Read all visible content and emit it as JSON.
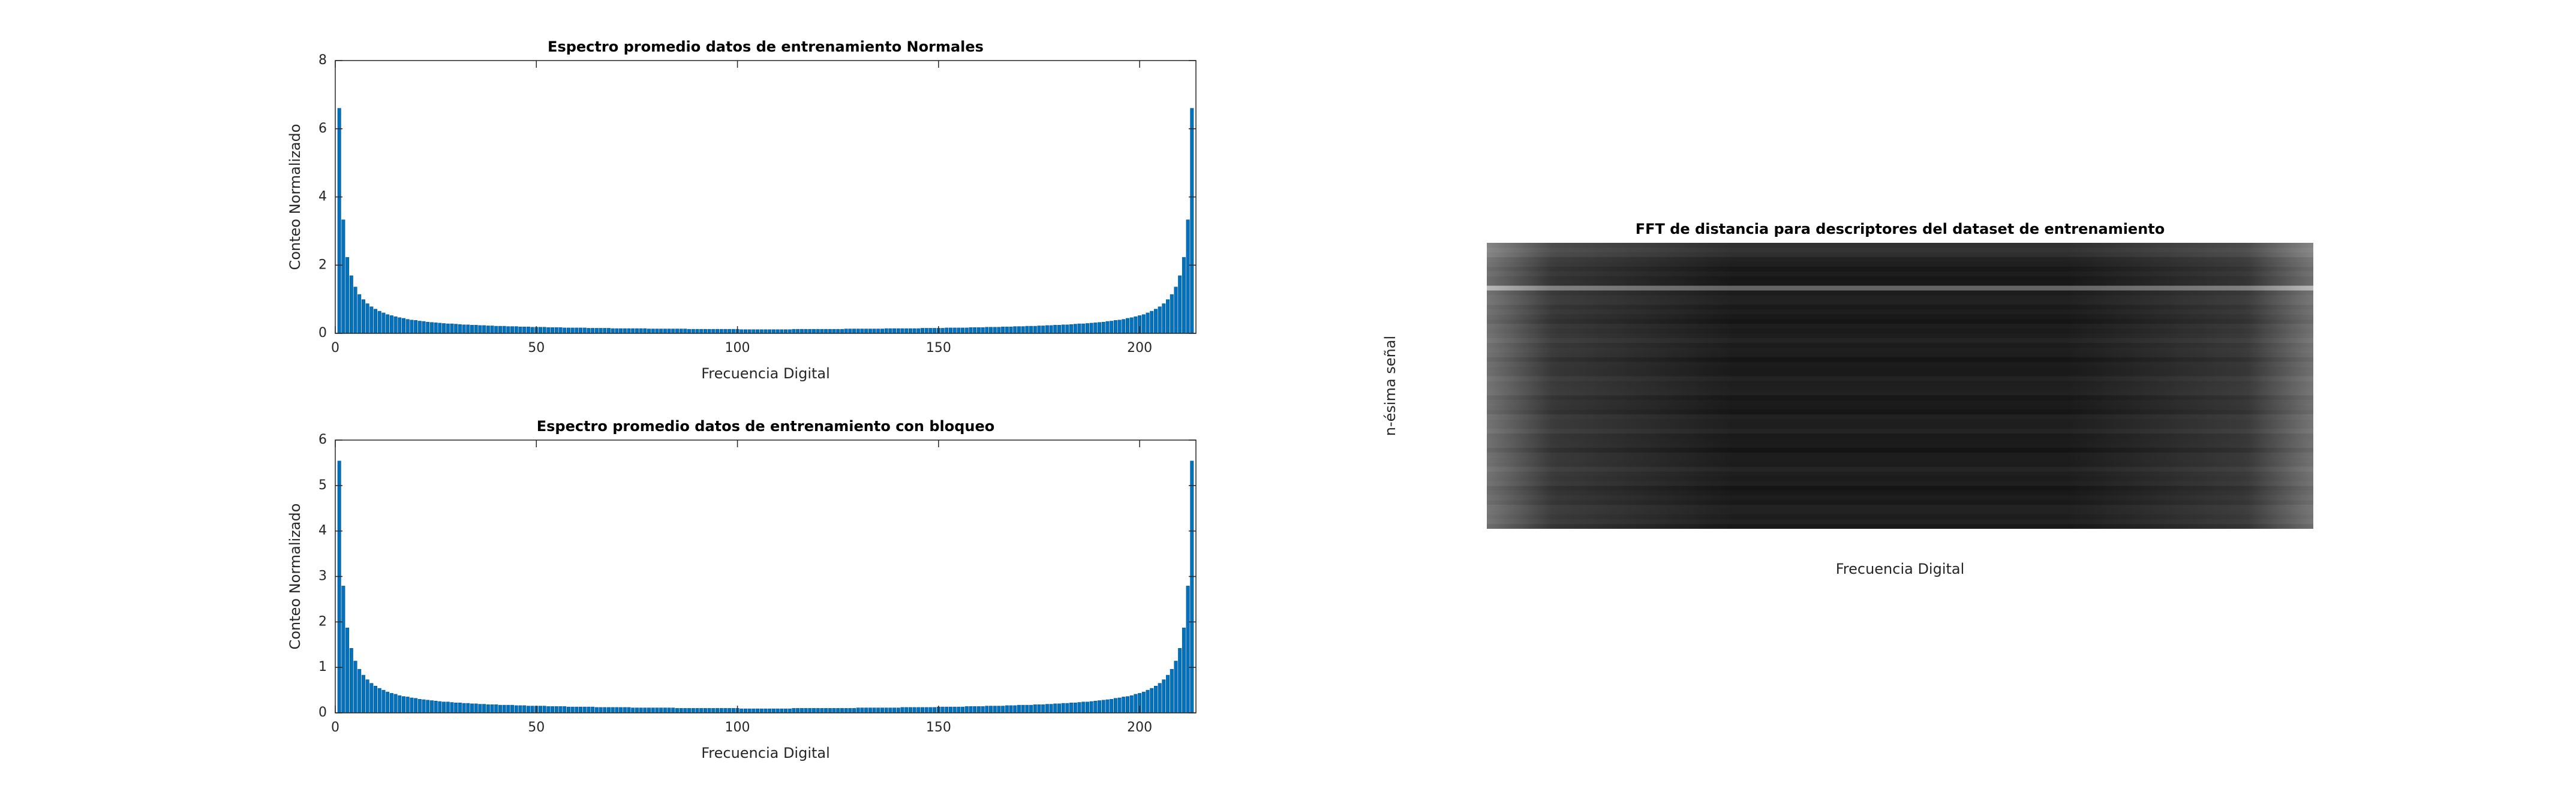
{
  "chart_data": [
    {
      "type": "bar",
      "title": "Espectro promedio datos de entrenamiento Normales",
      "xlabel": "Frecuencia Digital",
      "ylabel": "Conteo Normalizado",
      "color": "#0072bd",
      "xlim": [
        0,
        214
      ],
      "xticks": [
        0,
        50,
        100,
        150,
        200
      ],
      "ylim": [
        0,
        8
      ],
      "yticks": [
        0,
        2,
        4,
        6,
        8
      ],
      "x": [
        0,
        1,
        2,
        3,
        4,
        5,
        6,
        7,
        8,
        9,
        10,
        11,
        12,
        13,
        14,
        15,
        16,
        17,
        18,
        19,
        20,
        21,
        22,
        23,
        24,
        25,
        26,
        27,
        28,
        29,
        30,
        31,
        32,
        33,
        34,
        35,
        36,
        37,
        38,
        39,
        40,
        41,
        42,
        43,
        44,
        45,
        46,
        47,
        48,
        49,
        50,
        51,
        52,
        53,
        54,
        55,
        56,
        57,
        58,
        59,
        60,
        61,
        62,
        63,
        64,
        65,
        66,
        67,
        68,
        69,
        70,
        71,
        72,
        73,
        74,
        75,
        76,
        77,
        78,
        79,
        80,
        81,
        82,
        83,
        84,
        85,
        86,
        87,
        88,
        89,
        90,
        91,
        92,
        93,
        94,
        95,
        96,
        97,
        98,
        99,
        100,
        101,
        102,
        103,
        104,
        105,
        106,
        107,
        108,
        109,
        110,
        111,
        112,
        113,
        114,
        115,
        116,
        117,
        118,
        119,
        120,
        121,
        122,
        123,
        124,
        125,
        126,
        127,
        128,
        129,
        130,
        131,
        132,
        133,
        134,
        135,
        136,
        137,
        138,
        139,
        140,
        141,
        142,
        143,
        144,
        145,
        146,
        147,
        148,
        149,
        150,
        151,
        152,
        153,
        154,
        155,
        156,
        157,
        158,
        159,
        160,
        161,
        162,
        163,
        164,
        165,
        166,
        167,
        168,
        169,
        170,
        171,
        172,
        173,
        174,
        175,
        176,
        177,
        178,
        179,
        180,
        181,
        182,
        183,
        184,
        185,
        186,
        187,
        188,
        189,
        190,
        191,
        192,
        193,
        194,
        195,
        196,
        197,
        198,
        199,
        200,
        201,
        202,
        203,
        204,
        205,
        206,
        207,
        208,
        209,
        210,
        211,
        212,
        213
      ],
      "values": [
        0,
        6.6,
        3.33,
        2.23,
        1.69,
        1.36,
        1.14,
        0.99,
        0.87,
        0.78,
        0.71,
        0.65,
        0.6,
        0.55,
        0.52,
        0.49,
        0.46,
        0.44,
        0.41,
        0.39,
        0.38,
        0.36,
        0.35,
        0.33,
        0.32,
        0.31,
        0.3,
        0.29,
        0.28,
        0.28,
        0.27,
        0.26,
        0.25,
        0.25,
        0.24,
        0.24,
        0.23,
        0.23,
        0.22,
        0.22,
        0.21,
        0.21,
        0.21,
        0.2,
        0.2,
        0.2,
        0.19,
        0.19,
        0.19,
        0.18,
        0.18,
        0.18,
        0.18,
        0.17,
        0.17,
        0.17,
        0.17,
        0.16,
        0.16,
        0.16,
        0.16,
        0.16,
        0.16,
        0.15,
        0.15,
        0.15,
        0.15,
        0.15,
        0.15,
        0.14,
        0.14,
        0.14,
        0.14,
        0.14,
        0.14,
        0.14,
        0.14,
        0.14,
        0.13,
        0.13,
        0.13,
        0.13,
        0.13,
        0.13,
        0.13,
        0.13,
        0.13,
        0.13,
        0.12,
        0.12,
        0.12,
        0.12,
        0.12,
        0.12,
        0.12,
        0.12,
        0.12,
        0.12,
        0.12,
        0.12,
        0.12,
        0.11,
        0.11,
        0.11,
        0.11,
        0.11,
        0.11,
        0.11,
        0.11,
        0.11,
        0.11,
        0.11,
        0.11,
        0.11,
        0.12,
        0.12,
        0.12,
        0.12,
        0.12,
        0.12,
        0.12,
        0.12,
        0.12,
        0.12,
        0.12,
        0.12,
        0.12,
        0.13,
        0.13,
        0.13,
        0.13,
        0.13,
        0.13,
        0.13,
        0.13,
        0.13,
        0.13,
        0.14,
        0.14,
        0.14,
        0.14,
        0.14,
        0.14,
        0.14,
        0.14,
        0.14,
        0.15,
        0.15,
        0.15,
        0.15,
        0.15,
        0.15,
        0.16,
        0.16,
        0.16,
        0.16,
        0.16,
        0.16,
        0.17,
        0.17,
        0.17,
        0.17,
        0.18,
        0.18,
        0.18,
        0.18,
        0.19,
        0.19,
        0.19,
        0.2,
        0.2,
        0.2,
        0.21,
        0.21,
        0.21,
        0.22,
        0.22,
        0.23,
        0.23,
        0.24,
        0.24,
        0.25,
        0.25,
        0.26,
        0.27,
        0.28,
        0.28,
        0.29,
        0.3,
        0.31,
        0.32,
        0.33,
        0.35,
        0.36,
        0.38,
        0.39,
        0.41,
        0.44,
        0.46,
        0.49,
        0.52,
        0.55,
        0.6,
        0.65,
        0.71,
        0.78,
        0.87,
        0.99,
        1.14,
        1.36,
        1.69,
        2.23,
        3.33,
        6.6
      ]
    },
    {
      "type": "bar",
      "title": "Espectro promedio datos de entrenamiento con bloqueo",
      "xlabel": "Frecuencia Digital",
      "ylabel": "Conteo Normalizado",
      "color": "#0072bd",
      "xlim": [
        0,
        214
      ],
      "xticks": [
        0,
        50,
        100,
        150,
        200
      ],
      "ylim": [
        0,
        6
      ],
      "yticks": [
        0,
        1,
        2,
        3,
        4,
        5,
        6
      ],
      "x": [
        0,
        1,
        2,
        3,
        4,
        5,
        6,
        7,
        8,
        9,
        10,
        11,
        12,
        13,
        14,
        15,
        16,
        17,
        18,
        19,
        20,
        21,
        22,
        23,
        24,
        25,
        26,
        27,
        28,
        29,
        30,
        31,
        32,
        33,
        34,
        35,
        36,
        37,
        38,
        39,
        40,
        41,
        42,
        43,
        44,
        45,
        46,
        47,
        48,
        49,
        50,
        51,
        52,
        53,
        54,
        55,
        56,
        57,
        58,
        59,
        60,
        61,
        62,
        63,
        64,
        65,
        66,
        67,
        68,
        69,
        70,
        71,
        72,
        73,
        74,
        75,
        76,
        77,
        78,
        79,
        80,
        81,
        82,
        83,
        84,
        85,
        86,
        87,
        88,
        89,
        90,
        91,
        92,
        93,
        94,
        95,
        96,
        97,
        98,
        99,
        100,
        101,
        102,
        103,
        104,
        105,
        106,
        107,
        108,
        109,
        110,
        111,
        112,
        113,
        114,
        115,
        116,
        117,
        118,
        119,
        120,
        121,
        122,
        123,
        124,
        125,
        126,
        127,
        128,
        129,
        130,
        131,
        132,
        133,
        134,
        135,
        136,
        137,
        138,
        139,
        140,
        141,
        142,
        143,
        144,
        145,
        146,
        147,
        148,
        149,
        150,
        151,
        152,
        153,
        154,
        155,
        156,
        157,
        158,
        159,
        160,
        161,
        162,
        163,
        164,
        165,
        166,
        167,
        168,
        169,
        170,
        171,
        172,
        173,
        174,
        175,
        176,
        177,
        178,
        179,
        180,
        181,
        182,
        183,
        184,
        185,
        186,
        187,
        188,
        189,
        190,
        191,
        192,
        193,
        194,
        195,
        196,
        197,
        198,
        199,
        200,
        201,
        202,
        203,
        204,
        205,
        206,
        207,
        208,
        209,
        210,
        211,
        212,
        213
      ],
      "values": [
        0,
        5.54,
        2.79,
        1.87,
        1.42,
        1.14,
        0.96,
        0.83,
        0.73,
        0.65,
        0.59,
        0.54,
        0.5,
        0.46,
        0.43,
        0.41,
        0.38,
        0.36,
        0.35,
        0.33,
        0.32,
        0.3,
        0.29,
        0.28,
        0.27,
        0.26,
        0.25,
        0.24,
        0.24,
        0.23,
        0.22,
        0.22,
        0.21,
        0.21,
        0.2,
        0.2,
        0.19,
        0.19,
        0.18,
        0.18,
        0.18,
        0.17,
        0.17,
        0.17,
        0.17,
        0.16,
        0.16,
        0.16,
        0.15,
        0.15,
        0.15,
        0.15,
        0.15,
        0.14,
        0.14,
        0.14,
        0.14,
        0.14,
        0.13,
        0.13,
        0.13,
        0.13,
        0.13,
        0.13,
        0.13,
        0.12,
        0.12,
        0.12,
        0.12,
        0.12,
        0.12,
        0.12,
        0.12,
        0.12,
        0.11,
        0.11,
        0.11,
        0.11,
        0.11,
        0.11,
        0.11,
        0.11,
        0.11,
        0.11,
        0.11,
        0.1,
        0.1,
        0.1,
        0.1,
        0.1,
        0.1,
        0.1,
        0.1,
        0.1,
        0.1,
        0.1,
        0.1,
        0.1,
        0.1,
        0.1,
        0.1,
        0.09,
        0.09,
        0.09,
        0.09,
        0.09,
        0.09,
        0.09,
        0.09,
        0.09,
        0.09,
        0.09,
        0.09,
        0.09,
        0.1,
        0.1,
        0.1,
        0.1,
        0.1,
        0.1,
        0.1,
        0.1,
        0.1,
        0.1,
        0.1,
        0.1,
        0.1,
        0.1,
        0.1,
        0.1,
        0.11,
        0.11,
        0.11,
        0.11,
        0.11,
        0.11,
        0.11,
        0.11,
        0.11,
        0.11,
        0.11,
        0.12,
        0.12,
        0.12,
        0.12,
        0.12,
        0.12,
        0.12,
        0.12,
        0.12,
        0.13,
        0.13,
        0.13,
        0.13,
        0.13,
        0.13,
        0.13,
        0.14,
        0.14,
        0.14,
        0.14,
        0.14,
        0.15,
        0.15,
        0.15,
        0.15,
        0.15,
        0.16,
        0.16,
        0.16,
        0.17,
        0.17,
        0.17,
        0.17,
        0.18,
        0.18,
        0.18,
        0.19,
        0.19,
        0.2,
        0.2,
        0.21,
        0.21,
        0.22,
        0.22,
        0.23,
        0.24,
        0.24,
        0.25,
        0.26,
        0.27,
        0.28,
        0.29,
        0.3,
        0.32,
        0.33,
        0.35,
        0.36,
        0.38,
        0.41,
        0.43,
        0.46,
        0.5,
        0.54,
        0.59,
        0.65,
        0.73,
        0.83,
        0.96,
        1.14,
        1.42,
        1.87,
        2.79,
        5.54
      ]
    },
    {
      "type": "heatmap",
      "title": "FFT de distancia para descriptores del dataset de entrenamiento",
      "xlabel": "Frecuencia Digital",
      "ylabel": "n-ésima señal",
      "colormap": "gray"
    }
  ]
}
